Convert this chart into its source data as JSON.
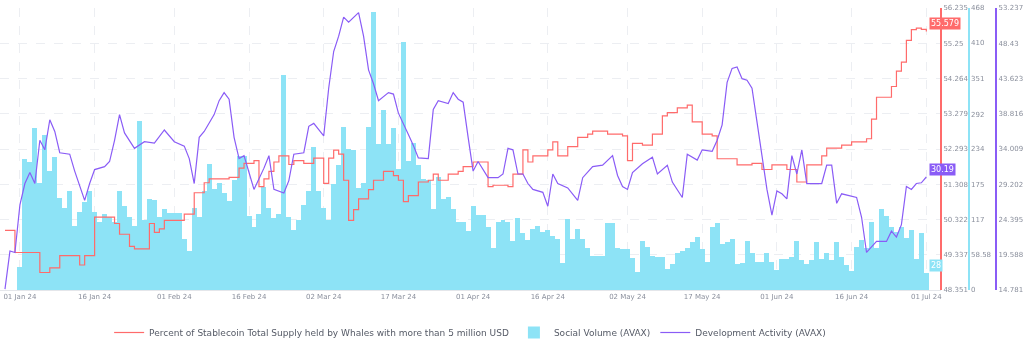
{
  "chart_data": {
    "type": "bar",
    "grid": true,
    "legend": "bottom",
    "xlim": [
      "2023-12-28",
      "2024-07-04"
    ],
    "xticks": [
      {
        "value": "2024-01-01",
        "label": "01 Jan 24"
      },
      {
        "value": "2024-01-16",
        "label": "16 Jan 24"
      },
      {
        "value": "2024-02-01",
        "label": "01 Feb 24"
      },
      {
        "value": "2024-02-16",
        "label": "16 Feb 24"
      },
      {
        "value": "2024-03-02",
        "label": "02 Mar 24"
      },
      {
        "value": "2024-03-17",
        "label": "17 Mar 24"
      },
      {
        "value": "2024-04-01",
        "label": "01 Apr 24"
      },
      {
        "value": "2024-04-16",
        "label": "16 Apr 24"
      },
      {
        "value": "2024-05-02",
        "label": "02 May 24"
      },
      {
        "value": "2024-05-17",
        "label": "17 May 24"
      },
      {
        "value": "2024-06-01",
        "label": "01 Jun 24"
      },
      {
        "value": "2024-06-16",
        "label": "16 Jun 24"
      },
      {
        "value": "2024-07-01",
        "label": "01 Jul 24"
      }
    ],
    "ylim": [
      0,
      468
    ],
    "yticks": [
      0,
      58.58,
      117,
      175,
      234,
      292,
      351,
      410,
      468
    ],
    "y2lim": [
      48.351,
      56.235
    ],
    "y2ticks": [
      48.351,
      49.337,
      50.322,
      51.308,
      52.293,
      53.279,
      54.264,
      55.25,
      56.235
    ],
    "y3lim": [
      14.781,
      53.237
    ],
    "y3ticks": [
      14.781,
      19.588,
      24.395,
      29.202,
      34.009,
      38.816,
      43.623,
      48.43,
      53.237
    ],
    "x": [
      "2024-01-01",
      "2024-01-02",
      "2024-01-03",
      "2024-01-04",
      "2024-01-05",
      "2024-01-06",
      "2024-01-07",
      "2024-01-08",
      "2024-01-09",
      "2024-01-10",
      "2024-01-11",
      "2024-01-12",
      "2024-01-13",
      "2024-01-14",
      "2024-01-15",
      "2024-01-16",
      "2024-01-17",
      "2024-01-18",
      "2024-01-19",
      "2024-01-20",
      "2024-01-21",
      "2024-01-22",
      "2024-01-23",
      "2024-01-24",
      "2024-01-25",
      "2024-01-26",
      "2024-01-27",
      "2024-01-28",
      "2024-01-29",
      "2024-01-30",
      "2024-01-31",
      "2024-02-01",
      "2024-02-02",
      "2024-02-03",
      "2024-02-04",
      "2024-02-05",
      "2024-02-06",
      "2024-02-07",
      "2024-02-08",
      "2024-02-09",
      "2024-02-10",
      "2024-02-11",
      "2024-02-12",
      "2024-02-13",
      "2024-02-14",
      "2024-02-15",
      "2024-02-16",
      "2024-02-17",
      "2024-02-18",
      "2024-02-19",
      "2024-02-20",
      "2024-02-21",
      "2024-02-22",
      "2024-02-23",
      "2024-02-24",
      "2024-02-25",
      "2024-02-26",
      "2024-02-27",
      "2024-02-28",
      "2024-02-29",
      "2024-03-01",
      "2024-03-02",
      "2024-03-03",
      "2024-03-04",
      "2024-03-05",
      "2024-03-06",
      "2024-03-07",
      "2024-03-08",
      "2024-03-09",
      "2024-03-10",
      "2024-03-11",
      "2024-03-12",
      "2024-03-13",
      "2024-03-14",
      "2024-03-15",
      "2024-03-16",
      "2024-03-17",
      "2024-03-18",
      "2024-03-19",
      "2024-03-20",
      "2024-03-21",
      "2024-03-22",
      "2024-03-23",
      "2024-03-24",
      "2024-03-25",
      "2024-03-26",
      "2024-03-27",
      "2024-03-28",
      "2024-03-29",
      "2024-03-30",
      "2024-03-31",
      "2024-04-01",
      "2024-04-02",
      "2024-04-03",
      "2024-04-04",
      "2024-04-05",
      "2024-04-06",
      "2024-04-07",
      "2024-04-08",
      "2024-04-09",
      "2024-04-10",
      "2024-04-11",
      "2024-04-12",
      "2024-04-13",
      "2024-04-14",
      "2024-04-15",
      "2024-04-16",
      "2024-04-17",
      "2024-04-18",
      "2024-04-19",
      "2024-04-20",
      "2024-04-21",
      "2024-04-22",
      "2024-04-23",
      "2024-04-24",
      "2024-04-25",
      "2024-04-26",
      "2024-04-27",
      "2024-04-28",
      "2024-04-29",
      "2024-04-30",
      "2024-05-01",
      "2024-05-02",
      "2024-05-03",
      "2024-05-04",
      "2024-05-05",
      "2024-05-06",
      "2024-05-07",
      "2024-05-08",
      "2024-05-09",
      "2024-05-10",
      "2024-05-11",
      "2024-05-12",
      "2024-05-13",
      "2024-05-14",
      "2024-05-15",
      "2024-05-16",
      "2024-05-17",
      "2024-05-18",
      "2024-05-19",
      "2024-05-20",
      "2024-05-21",
      "2024-05-22",
      "2024-05-23",
      "2024-05-24",
      "2024-05-25",
      "2024-05-26",
      "2024-05-27",
      "2024-05-28",
      "2024-05-29",
      "2024-05-30",
      "2024-05-31",
      "2024-06-01",
      "2024-06-02",
      "2024-06-03",
      "2024-06-04",
      "2024-06-05",
      "2024-06-06",
      "2024-06-07",
      "2024-06-08",
      "2024-06-09",
      "2024-06-10",
      "2024-06-11",
      "2024-06-12",
      "2024-06-13",
      "2024-06-14",
      "2024-06-15",
      "2024-06-16",
      "2024-06-17",
      "2024-06-18",
      "2024-06-19",
      "2024-06-20",
      "2024-06-21",
      "2024-06-22",
      "2024-06-23",
      "2024-06-24",
      "2024-06-25",
      "2024-06-26",
      "2024-06-27",
      "2024-06-28",
      "2024-06-29",
      "2024-06-30",
      "2024-07-01"
    ],
    "series": [
      {
        "name": "Percent of Stablecoin Total Supply held by Whales with more than 5 million USD",
        "type": "step",
        "axis": "y2",
        "color": "#ff6b6b",
        "x": [
          "2023-12-29",
          "2023-12-31",
          "2024-01-05",
          "2024-01-07",
          "2024-01-09",
          "2024-01-13",
          "2024-01-14",
          "2024-01-16",
          "2024-01-20",
          "2024-01-21",
          "2024-01-23",
          "2024-01-24",
          "2024-01-27",
          "2024-01-28",
          "2024-01-29",
          "2024-01-30",
          "2024-02-03",
          "2024-02-05",
          "2024-02-07",
          "2024-02-08",
          "2024-02-12",
          "2024-02-14",
          "2024-02-15",
          "2024-02-17",
          "2024-02-18",
          "2024-02-19",
          "2024-02-20",
          "2024-02-21",
          "2024-02-22",
          "2024-02-24",
          "2024-02-25",
          "2024-02-27",
          "2024-02-29",
          "2024-03-02",
          "2024-03-03",
          "2024-03-04",
          "2024-03-05",
          "2024-03-06",
          "2024-03-07",
          "2024-03-08",
          "2024-03-09",
          "2024-03-11",
          "2024-03-12",
          "2024-03-14",
          "2024-03-16",
          "2024-03-17",
          "2024-03-18",
          "2024-03-19",
          "2024-03-21",
          "2024-03-23",
          "2024-03-24",
          "2024-03-25",
          "2024-03-27",
          "2024-03-29",
          "2024-03-30",
          "2024-04-01",
          "2024-04-04",
          "2024-04-05",
          "2024-04-08",
          "2024-04-09",
          "2024-04-11",
          "2024-04-12",
          "2024-04-13",
          "2024-04-16",
          "2024-04-17",
          "2024-04-18",
          "2024-04-20",
          "2024-04-22",
          "2024-04-24",
          "2024-04-25",
          "2024-04-28",
          "2024-05-01",
          "2024-05-02",
          "2024-05-03",
          "2024-05-05",
          "2024-05-07",
          "2024-05-09",
          "2024-05-10",
          "2024-05-12",
          "2024-05-14",
          "2024-05-15",
          "2024-05-17",
          "2024-05-19",
          "2024-05-20",
          "2024-05-24",
          "2024-05-27",
          "2024-05-29",
          "2024-05-31",
          "2024-06-03",
          "2024-06-05",
          "2024-06-07",
          "2024-06-10",
          "2024-06-11",
          "2024-06-14",
          "2024-06-16",
          "2024-06-19",
          "2024-06-20",
          "2024-06-21",
          "2024-06-24",
          "2024-06-25",
          "2024-06-26",
          "2024-06-27",
          "2024-06-28",
          "2024-06-29",
          "2024-06-30",
          "2024-07-01"
        ],
        "values": [
          50.02,
          49.4,
          48.84,
          48.97,
          49.31,
          49.05,
          49.31,
          50.39,
          50.21,
          49.91,
          49.57,
          49.5,
          50.21,
          49.96,
          50.06,
          50.3,
          50.47,
          51.07,
          51.35,
          51.46,
          51.5,
          51.76,
          51.89,
          51.97,
          51.24,
          51.46,
          51.67,
          51.93,
          52.1,
          51.86,
          51.97,
          51.89,
          52.04,
          51.33,
          52.04,
          52.26,
          52.15,
          51.42,
          50.3,
          50.6,
          50.9,
          51.16,
          51.42,
          51.67,
          51.55,
          51.42,
          50.82,
          50.99,
          51.37,
          51.42,
          51.59,
          51.42,
          51.59,
          51.67,
          51.8,
          51.93,
          51.24,
          51.28,
          51.24,
          51.59,
          52.27,
          51.93,
          52.1,
          52.27,
          52.49,
          52.1,
          52.36,
          52.62,
          52.71,
          52.79,
          52.71,
          52.66,
          51.97,
          52.45,
          52.4,
          52.71,
          53.22,
          53.31,
          53.44,
          53.52,
          53.05,
          52.71,
          52.66,
          52.02,
          51.85,
          51.89,
          51.72,
          51.85,
          51.72,
          51.37,
          51.85,
          52.1,
          52.32,
          52.4,
          52.49,
          52.58,
          53.13,
          53.74,
          54.04,
          54.47,
          54.72,
          55.33,
          55.63,
          55.67,
          55.64,
          55.579
        ],
        "value_labels": [
          null,
          null,
          null,
          null,
          null,
          null,
          null,
          null,
          null,
          null,
          null,
          null,
          null,
          null,
          null,
          null,
          null,
          null,
          null,
          null,
          null,
          null,
          null,
          null,
          null,
          null,
          null,
          null,
          null,
          null,
          null,
          null,
          null,
          null,
          null,
          null,
          null,
          null,
          null,
          null,
          null,
          null,
          null,
          null,
          null,
          null,
          null,
          null,
          null,
          null,
          null,
          null,
          null,
          null,
          null,
          null,
          null,
          null,
          null,
          null,
          null,
          null,
          null,
          null,
          null,
          null,
          null,
          null,
          null,
          null,
          null,
          null,
          null,
          null,
          null,
          null,
          null,
          null,
          null,
          null,
          null,
          null,
          null,
          null,
          null,
          null,
          null,
          null,
          null,
          null,
          null,
          null,
          null,
          null,
          null,
          null,
          null,
          null,
          null,
          null,
          null,
          null,
          null,
          null,
          null,
          "55.579"
        ]
      },
      {
        "name": "Social Volume (AVAX)",
        "axis": "y",
        "color": "#8de3f6",
        "values": [
          38,
          218,
          213,
          269,
          178,
          258,
          197,
          220,
          152,
          136,
          164,
          107,
          130,
          146,
          165,
          130,
          113,
          126,
          121,
          113,
          164,
          139,
          121,
          107,
          280,
          117,
          151,
          150,
          121,
          135,
          128,
          127,
          127,
          85,
          65,
          136,
          121,
          164,
          209,
          167,
          177,
          161,
          147,
          182,
          222,
          222,
          123,
          105,
          126,
          171,
          136,
          119,
          126,
          357,
          121,
          100,
          116,
          141,
          164,
          237,
          164,
          136,
          116,
          176,
          207,
          271,
          234,
          233,
          169,
          177,
          271,
          462,
          243,
          298,
          242,
          269,
          201,
          411,
          214,
          244,
          207,
          185,
          183,
          135,
          187,
          151,
          155,
          135,
          113,
          113,
          98,
          139,
          124,
          124,
          105,
          70,
          113,
          116,
          113,
          82,
          119,
          95,
          83,
          101,
          107,
          97,
          99,
          89,
          85,
          45,
          118,
          85,
          102,
          85,
          70,
          57,
          56,
          56,
          111,
          111,
          69,
          68,
          68,
          53,
          30,
          82,
          72,
          57,
          55,
          54,
          35,
          43,
          61,
          64,
          70,
          80,
          88,
          68,
          47,
          105,
          111,
          76,
          80,
          85,
          43,
          45,
          81,
          62,
          47,
          47,
          62,
          47,
          34,
          52,
          51,
          55,
          81,
          50,
          43,
          50,
          80,
          51,
          62,
          50,
          80,
          55,
          42,
          32,
          72,
          83,
          70,
          113,
          70,
          135,
          122,
          104,
          96,
          104,
          87,
          99,
          52,
          95,
          28
        ],
        "value_labels": [
          null,
          null,
          null,
          null,
          null,
          null,
          null,
          null,
          null,
          null,
          null,
          null,
          null,
          null,
          null,
          null,
          null,
          null,
          null,
          null,
          null,
          null,
          null,
          null,
          null,
          null,
          null,
          null,
          null,
          null,
          null,
          null,
          null,
          null,
          null,
          null,
          null,
          null,
          null,
          null,
          null,
          null,
          null,
          null,
          null,
          null,
          null,
          null,
          null,
          null,
          null,
          null,
          null,
          null,
          null,
          null,
          null,
          null,
          null,
          null,
          null,
          null,
          null,
          null,
          null,
          null,
          null,
          null,
          null,
          null,
          null,
          null,
          null,
          null,
          null,
          null,
          null,
          null,
          null,
          null,
          null,
          null,
          null,
          null,
          null,
          null,
          null,
          null,
          null,
          null,
          null,
          null,
          null,
          null,
          null,
          null,
          null,
          null,
          null,
          null,
          null,
          null,
          null,
          null,
          null,
          null,
          null,
          null,
          null,
          null,
          null,
          null,
          null,
          null,
          null,
          null,
          null,
          null,
          null,
          null,
          null,
          null,
          null,
          null,
          null,
          null,
          null,
          null,
          null,
          null,
          null,
          null,
          null,
          null,
          null,
          null,
          null,
          null,
          null,
          null,
          null,
          null,
          null,
          null,
          null,
          null,
          null,
          null,
          null,
          null,
          null,
          null,
          null,
          null,
          null,
          null,
          null,
          null,
          null,
          null,
          null,
          null,
          null,
          null,
          null,
          null,
          null,
          null,
          null,
          null,
          null,
          null,
          null,
          null,
          null,
          null,
          null,
          null,
          null,
          null,
          null,
          null,
          "28"
        ]
      },
      {
        "name": "Development Activity (AVAX)",
        "type": "line",
        "axis": "y3",
        "color": "#8a5cf6",
        "x": [
          "2023-12-29",
          "2023-12-30",
          "2023-12-31",
          "2024-01-01",
          "2024-01-02",
          "2024-01-03",
          "2024-01-04",
          "2024-01-05",
          "2024-01-06",
          "2024-01-07",
          "2024-01-08",
          "2024-01-09",
          "2024-01-11",
          "2024-01-12",
          "2024-01-14",
          "2024-01-15",
          "2024-01-16",
          "2024-01-18",
          "2024-01-19",
          "2024-01-20",
          "2024-01-21",
          "2024-01-22",
          "2024-01-24",
          "2024-01-26",
          "2024-01-28",
          "2024-01-30",
          "2024-02-01",
          "2024-02-03",
          "2024-02-04",
          "2024-02-05",
          "2024-02-06",
          "2024-02-07",
          "2024-02-09",
          "2024-02-10",
          "2024-02-11",
          "2024-02-12",
          "2024-02-13",
          "2024-02-14",
          "2024-02-15",
          "2024-02-16",
          "2024-02-17",
          "2024-02-19",
          "2024-02-20",
          "2024-02-21",
          "2024-02-23",
          "2024-02-24",
          "2024-02-25",
          "2024-02-27",
          "2024-02-28",
          "2024-02-29",
          "2024-03-02",
          "2024-03-03",
          "2024-03-04",
          "2024-03-05",
          "2024-03-06",
          "2024-03-07",
          "2024-03-09",
          "2024-03-10",
          "2024-03-11",
          "2024-03-12",
          "2024-03-13",
          "2024-03-15",
          "2024-03-16",
          "2024-03-17",
          "2024-03-19",
          "2024-03-20",
          "2024-03-21",
          "2024-03-23",
          "2024-03-24",
          "2024-03-25",
          "2024-03-27",
          "2024-03-28",
          "2024-03-29",
          "2024-03-30",
          "2024-03-31",
          "2024-04-01",
          "2024-04-02",
          "2024-04-04",
          "2024-04-06",
          "2024-04-07",
          "2024-04-08",
          "2024-04-09",
          "2024-04-10",
          "2024-04-11",
          "2024-04-12",
          "2024-04-13",
          "2024-04-15",
          "2024-04-16",
          "2024-04-17",
          "2024-04-18",
          "2024-04-20",
          "2024-04-22",
          "2024-04-23",
          "2024-04-25",
          "2024-04-27",
          "2024-04-29",
          "2024-04-30",
          "2024-05-01",
          "2024-05-02",
          "2024-05-03",
          "2024-05-05",
          "2024-05-07",
          "2024-05-08",
          "2024-05-10",
          "2024-05-11",
          "2024-05-13",
          "2024-05-14",
          "2024-05-16",
          "2024-05-17",
          "2024-05-19",
          "2024-05-20",
          "2024-05-21",
          "2024-05-22",
          "2024-05-23",
          "2024-05-24",
          "2024-05-25",
          "2024-05-26",
          "2024-05-27",
          "2024-05-28",
          "2024-05-29",
          "2024-05-30",
          "2024-05-31",
          "2024-06-01",
          "2024-06-02",
          "2024-06-03",
          "2024-06-04",
          "2024-06-05",
          "2024-06-06",
          "2024-06-07",
          "2024-06-10",
          "2024-06-11",
          "2024-06-12",
          "2024-06-13",
          "2024-06-14",
          "2024-06-17",
          "2024-06-18",
          "2024-06-19",
          "2024-06-21",
          "2024-06-23",
          "2024-06-24",
          "2024-06-25",
          "2024-06-26",
          "2024-06-27",
          "2024-06-28",
          "2024-06-29",
          "2024-06-30",
          "2024-07-01"
        ],
        "values": [
          14.9,
          20.1,
          19.9,
          26.4,
          29.3,
          30.8,
          29.3,
          35.2,
          33.9,
          38.0,
          36.4,
          33.5,
          33.3,
          31.0,
          27.0,
          29.3,
          31.2,
          31.6,
          32.3,
          35.2,
          38.7,
          36.2,
          34.1,
          35.0,
          34.8,
          36.6,
          35.0,
          34.4,
          32.7,
          29.3,
          35.6,
          36.4,
          38.7,
          40.6,
          41.7,
          40.8,
          35.6,
          32.7,
          33.1,
          30.8,
          28.5,
          31.4,
          33.1,
          28.5,
          28.0,
          29.7,
          33.3,
          33.5,
          37.1,
          37.5,
          35.8,
          42.3,
          47.3,
          49.4,
          52.0,
          51.3,
          52.6,
          49.4,
          44.8,
          42.9,
          40.6,
          41.7,
          41.5,
          38.9,
          36.0,
          34.5,
          32.8,
          32.7,
          39.4,
          40.6,
          40.2,
          41.7,
          40.8,
          40.4,
          35.6,
          31.0,
          32.3,
          30.1,
          30.1,
          30.6,
          34.1,
          33.9,
          30.6,
          30.6,
          29.3,
          28.5,
          28.1,
          26.2,
          30.6,
          29.3,
          28.7,
          27.0,
          30.1,
          31.6,
          31.8,
          33.1,
          30.4,
          28.9,
          28.5,
          30.8,
          32.0,
          32.9,
          30.6,
          31.8,
          29.5,
          27.4,
          33.3,
          32.5,
          33.9,
          33.7,
          35.2,
          37.3,
          43.1,
          45.0,
          45.2,
          43.6,
          43.4,
          42.3,
          37.7,
          33.1,
          28.5,
          25.0,
          28.3,
          27.9,
          27.2,
          33.1,
          30.6,
          33.9,
          29.3,
          29.3,
          31.8,
          31.8,
          26.6,
          27.9,
          27.4,
          24.7,
          19.9,
          21.4,
          21.4,
          22.8,
          22.0,
          23.7,
          28.9,
          28.5,
          29.3,
          29.4,
          30.19
        ],
        "value_labels": [
          null,
          null,
          null,
          null,
          null,
          null,
          null,
          null,
          null,
          null,
          null,
          null,
          null,
          null,
          null,
          null,
          null,
          null,
          null,
          null,
          null,
          null,
          null,
          null,
          null,
          null,
          null,
          null,
          null,
          null,
          null,
          null,
          null,
          null,
          null,
          null,
          null,
          null,
          null,
          null,
          null,
          null,
          null,
          null,
          null,
          null,
          null,
          null,
          null,
          null,
          null,
          null,
          null,
          null,
          null,
          null,
          null,
          null,
          null,
          null,
          null,
          null,
          null,
          null,
          null,
          null,
          null,
          null,
          null,
          null,
          null,
          null,
          null,
          null,
          null,
          null,
          null,
          null,
          null,
          null,
          null,
          null,
          null,
          null,
          null,
          null,
          null,
          null,
          null,
          null,
          null,
          null,
          null,
          null,
          null,
          null,
          null,
          null,
          null,
          null,
          null,
          null,
          null,
          null,
          null,
          null,
          null,
          null,
          null,
          null,
          null,
          null,
          null,
          null,
          null,
          null,
          null,
          null,
          null,
          null,
          null,
          null,
          null,
          null,
          null,
          null,
          null,
          null,
          null,
          null,
          null,
          null,
          null,
          null,
          null,
          null,
          null,
          null,
          null,
          null,
          null,
          null,
          null,
          null,
          null,
          null,
          "30.19"
        ]
      }
    ]
  }
}
